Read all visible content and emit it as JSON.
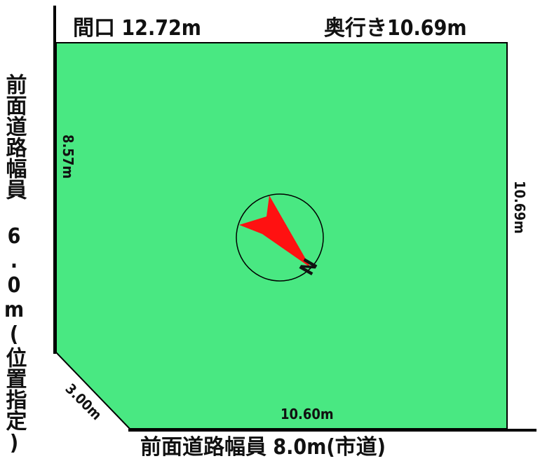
{
  "frontage": "間口 12.72m",
  "depth": "奥行き10.69m",
  "left_road": "前面道路幅員 6.0m(位置指定)",
  "bottom_road": "前面道路幅員 8.0m(市道)",
  "dimensions": {
    "left_side": "8.57m",
    "right_side": "10.69m",
    "corner_cut": "3.00m",
    "bottom_side": "10.60m"
  },
  "compass_label": "N",
  "colors": {
    "lot_fill": "#49E882",
    "arrow_fill": "#FF1111",
    "road_line": "#000000"
  }
}
